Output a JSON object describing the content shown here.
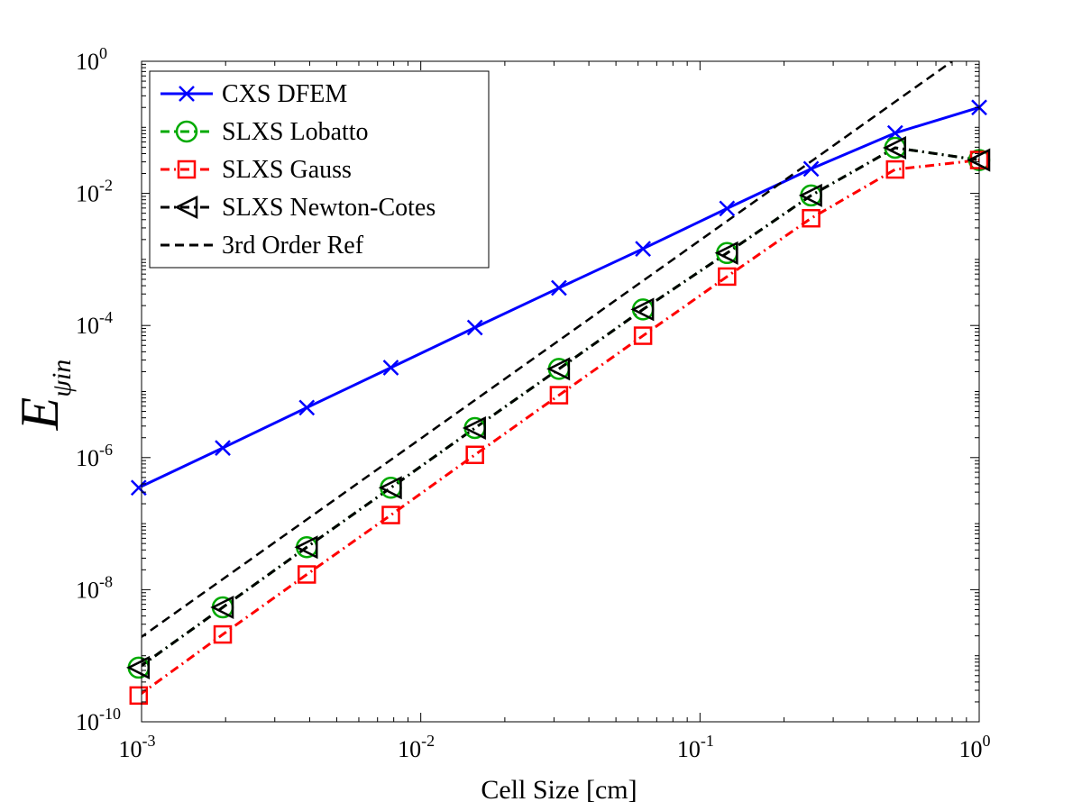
{
  "chart_data": {
    "type": "line",
    "title": "",
    "xlabel": "Cell Size [cm]",
    "ylabel": {
      "main": "E",
      "subscript": "ψin"
    },
    "xscale": "log",
    "yscale": "log",
    "xlim": [
      0.001,
      1
    ],
    "ylim": [
      1e-10,
      1
    ],
    "grid": false,
    "legend_position": "top-left",
    "x_ticks": [
      {
        "base": "10",
        "exp": "-3",
        "value": 0.001
      },
      {
        "base": "10",
        "exp": "-2",
        "value": 0.01
      },
      {
        "base": "10",
        "exp": "-1",
        "value": 0.1
      },
      {
        "base": "10",
        "exp": "0",
        "value": 1
      }
    ],
    "y_ticks": [
      {
        "base": "10",
        "exp": "-10",
        "value": 1e-10
      },
      {
        "base": "10",
        "exp": "-8",
        "value": 1e-08
      },
      {
        "base": "10",
        "exp": "-6",
        "value": 1e-06
      },
      {
        "base": "10",
        "exp": "-4",
        "value": 0.0001
      },
      {
        "base": "10",
        "exp": "-2",
        "value": 0.01
      },
      {
        "base": "10",
        "exp": "0",
        "value": 1
      }
    ],
    "x": [
      0.0009765625,
      0.001953125,
      0.00390625,
      0.0078125,
      0.015625,
      0.03125,
      0.0625,
      0.125,
      0.25,
      0.5,
      1
    ],
    "series": [
      {
        "name": "CXS DFEM",
        "color": "#0000ff",
        "dash": "solid",
        "marker": "x",
        "values": [
          3.5e-07,
          1.4e-06,
          5.7e-06,
          2.3e-05,
          9.3e-05,
          0.00037,
          0.00145,
          0.0059,
          0.0235,
          0.082,
          0.2
        ]
      },
      {
        "name": "SLXS Lobatto",
        "color": "#00aa00",
        "dash": "dashdot",
        "marker": "circle",
        "values": [
          6.6e-10,
          5.4e-09,
          4.4e-08,
          3.5e-07,
          2.8e-06,
          2.2e-05,
          0.000175,
          0.00125,
          0.0093,
          0.049,
          0.032
        ]
      },
      {
        "name": "SLXS Gauss",
        "color": "#ff0000",
        "dash": "dashdot",
        "marker": "square",
        "values": [
          2.5e-10,
          2.1e-09,
          1.7e-08,
          1.35e-07,
          1.1e-06,
          8.8e-06,
          7e-05,
          0.00055,
          0.0042,
          0.023,
          0.032
        ]
      },
      {
        "name": "SLXS Newton-Cotes",
        "color": "#000000",
        "dash": "dashdot",
        "marker": "triangle-left",
        "values": [
          6.6e-10,
          5.4e-09,
          4.4e-08,
          3.5e-07,
          2.8e-06,
          2.2e-05,
          0.000175,
          0.00125,
          0.0093,
          0.049,
          0.032
        ]
      },
      {
        "name": "3rd Order Ref",
        "color": "#000000",
        "dash": "dashed",
        "marker": "none",
        "x": [
          0.0009765625,
          0.8
        ],
        "values": [
          1.8e-09,
          1.0
        ]
      }
    ]
  }
}
